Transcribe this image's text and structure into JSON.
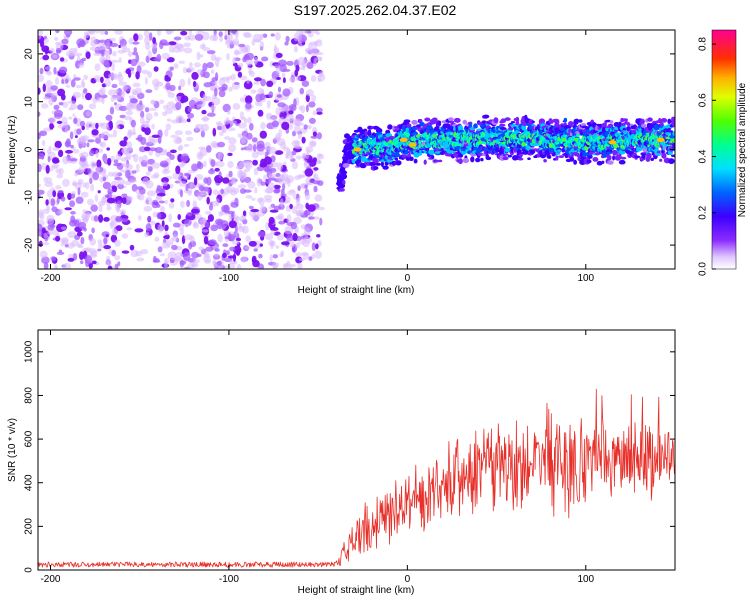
{
  "title": "S197.2025.262.04.37.E02",
  "colors": {
    "snr_line": "#e8302a",
    "axis": "#000000"
  },
  "colormap": [
    "#ffffff",
    "#b37bff",
    "#7a1fff",
    "#3d00ff",
    "#0050ff",
    "#00c8ff",
    "#00ffb0",
    "#40ff40",
    "#d8ff00",
    "#ffc000",
    "#ff4000",
    "#ff0080"
  ],
  "chart_data": [
    {
      "type": "heatmap",
      "name": "spectrogram",
      "xlabel": "Height of straight line (km)",
      "ylabel": "Frequency (Hz)",
      "xlim": [
        -207,
        150
      ],
      "ylim": [
        -25,
        25
      ],
      "xticks": [
        -200,
        -100,
        0,
        100
      ],
      "yticks": [
        -20,
        -10,
        0,
        10,
        20
      ],
      "colorbar": {
        "label": "Normalized spectral amplitude",
        "range": [
          0.0,
          0.85
        ],
        "ticks": [
          0.0,
          0.2,
          0.4,
          0.6,
          0.8
        ]
      },
      "noise_region_x": [
        -207,
        -48
      ],
      "signal_ridge": {
        "x": [
          -48,
          -45,
          -42,
          -40,
          -38,
          -36,
          -34,
          -30,
          -20,
          -10,
          -5,
          0,
          5,
          10,
          20,
          30,
          40,
          45,
          50,
          60,
          70,
          80,
          90,
          100,
          110,
          120,
          130,
          140,
          150
        ],
        "freq": [
          -3,
          -5,
          -6.5,
          -7,
          -6.5,
          -5,
          0,
          0.2,
          0.5,
          0.4,
          1,
          2,
          1.5,
          1.8,
          2,
          2,
          2.2,
          2.5,
          2,
          2.3,
          2.5,
          2,
          1.8,
          1.5,
          1.5,
          1.8,
          2,
          2,
          2
        ]
      },
      "peak_amplitude_points": [
        {
          "x": -28,
          "freq": 0
        },
        {
          "x": -2,
          "freq": 2
        },
        {
          "x": 3,
          "freq": 1
        },
        {
          "x": 115,
          "freq": 1.5
        },
        {
          "x": 142,
          "freq": 2
        }
      ]
    },
    {
      "type": "line",
      "name": "snr",
      "xlabel": "Height of straight line (km)",
      "ylabel": "SNR (10 * v/v)",
      "xlim": [
        -207,
        150
      ],
      "ylim": [
        0,
        1100
      ],
      "xticks": [
        -200,
        -100,
        0,
        100
      ],
      "yticks": [
        0,
        200,
        400,
        600,
        800,
        1000
      ],
      "series": [
        {
          "name": "SNR",
          "envelope_x": [
            -207,
            -40,
            -35,
            -30,
            -25,
            -20,
            -10,
            0,
            10,
            20,
            30,
            40,
            50,
            60,
            70,
            80,
            90,
            100,
            110,
            120,
            130,
            140,
            150
          ],
          "envelope_mean": [
            25,
            25,
            90,
            150,
            180,
            220,
            260,
            300,
            330,
            380,
            420,
            470,
            480,
            500,
            500,
            510,
            500,
            490,
            490,
            500,
            520,
            520,
            530
          ],
          "envelope_spread": [
            12,
            12,
            80,
            120,
            150,
            160,
            170,
            180,
            180,
            200,
            230,
            250,
            260,
            270,
            290,
            310,
            320,
            250,
            220,
            220,
            220,
            200,
            180
          ]
        }
      ]
    }
  ]
}
